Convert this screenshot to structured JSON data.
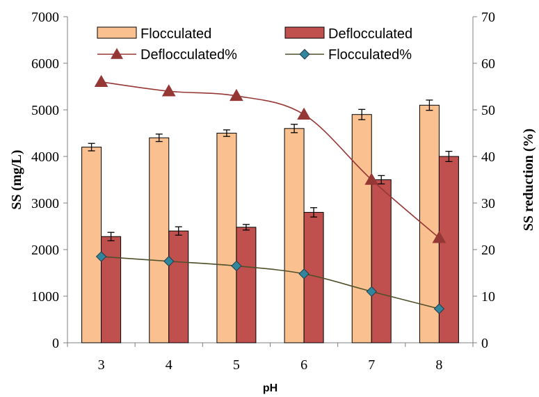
{
  "chart_data": {
    "type": "bar",
    "xlabel": "pH",
    "ylabel": "SS (mg/L)",
    "y2label": "SS reduction (%)",
    "categories": [
      "3",
      "4",
      "5",
      "6",
      "7",
      "8"
    ],
    "ylim": [
      0,
      7000
    ],
    "y_ticks": [
      "0",
      "1000",
      "2000",
      "3000",
      "4000",
      "5000",
      "6000",
      "7000"
    ],
    "y2lim": [
      0,
      70
    ],
    "y2_ticks": [
      "0",
      "10",
      "20",
      "30",
      "40",
      "50",
      "60",
      "70"
    ],
    "bar_series": [
      {
        "name": "Flocculated",
        "values": [
          4200,
          4400,
          4500,
          4600,
          4900,
          5100
        ],
        "errors": [
          80,
          80,
          70,
          90,
          110,
          110
        ],
        "color": "#fac090",
        "stroke": "#000000"
      },
      {
        "name": "Deflocculated",
        "values": [
          2280,
          2400,
          2480,
          2800,
          3500,
          4000
        ],
        "errors": [
          90,
          90,
          60,
          100,
          90,
          110
        ],
        "color": "#c0504d",
        "stroke": "#000000"
      }
    ],
    "line_series": [
      {
        "name": "Deflocculated%",
        "axis": "right",
        "marker": "triangle",
        "values": [
          56,
          54,
          53,
          49,
          35,
          22.5
        ],
        "color": "#953735"
      },
      {
        "name": "Flocculated%",
        "axis": "right",
        "marker": "diamond",
        "values": [
          18.5,
          17.5,
          16.5,
          14.8,
          11,
          7.3
        ],
        "color": "#4f4f2a",
        "marker_color": "#31859c"
      }
    ],
    "legend_position": "top"
  }
}
